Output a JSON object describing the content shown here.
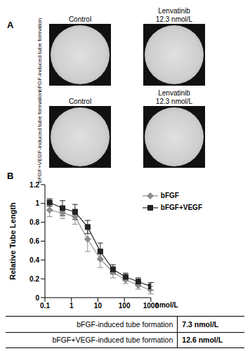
{
  "panel_labels": [
    "A",
    "B"
  ],
  "panel_a": {
    "rows": [
      {
        "label": "bFGF-induced tube formation",
        "columns": [
          "Control",
          "Lenvatinib 12.3 nmol/L"
        ]
      },
      {
        "label": "bFGF+VEGF-induced tube formation",
        "columns": [
          "Control",
          "Lenvatinib 12.3 nmol/L"
        ]
      }
    ]
  },
  "chart_data": {
    "type": "line",
    "y_label": "Relative Tube Length",
    "x_label": "nmol/L",
    "x": [
      0.15,
      0.46,
      1.37,
      4.1,
      12.3,
      37,
      111,
      333,
      1000
    ],
    "series": [
      {
        "name": "bFGF",
        "color": "#8c8c8c",
        "marker": "diamond",
        "line_style": "solid",
        "values": [
          0.93,
          0.9,
          0.86,
          0.62,
          0.41,
          0.27,
          0.19,
          0.13,
          0.08
        ],
        "errors": [
          0.07,
          0.06,
          0.08,
          0.13,
          0.09,
          0.06,
          0.04,
          0.04,
          0.04
        ]
      },
      {
        "name": "bFGF+VEGF",
        "color": "#222222",
        "marker": "square",
        "line_style": "solid",
        "values": [
          1.01,
          0.95,
          0.91,
          0.75,
          0.49,
          0.3,
          0.22,
          0.17,
          0.12
        ],
        "errors": [
          0.04,
          0.08,
          0.08,
          0.07,
          0.09,
          0.05,
          0.04,
          0.04,
          0.04
        ]
      }
    ],
    "xlim": [
      0.1,
      1000
    ],
    "xticks": [
      0.1,
      1,
      10,
      100,
      1000
    ],
    "ylim": [
      0,
      1.2
    ],
    "yticks": [
      0,
      0.2,
      0.4,
      0.6,
      0.8,
      1,
      1.2
    ],
    "log": "x",
    "grid": false,
    "legend": "upper right"
  },
  "table": {
    "rows": [
      [
        "bFGF-induced tube formation",
        "7.3 nmol/L"
      ],
      [
        "bFGF+VEGF-induced tube formation",
        "12.6 nmol/L"
      ]
    ]
  }
}
